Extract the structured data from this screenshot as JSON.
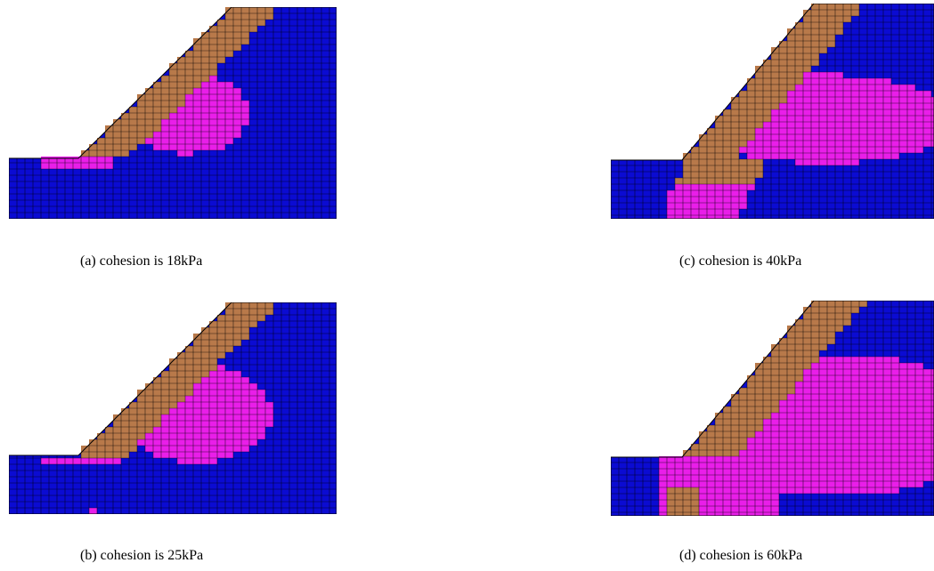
{
  "colors": {
    "background": "#ffffff",
    "elastic": "#0b0bd2",
    "failed_zone": "#e91ee9",
    "tension_zone": "#b8794a",
    "mesh_line": "#000000"
  },
  "panels": [
    {
      "id": "a",
      "caption": "(a) cohesion is 18kPa"
    },
    {
      "id": "b",
      "caption": "(b) cohesion is 25kPa"
    },
    {
      "id": "c",
      "caption": "(c) cohesion is 40kPa"
    },
    {
      "id": "d",
      "caption": "(d) cohesion is 60kPa"
    }
  ]
}
